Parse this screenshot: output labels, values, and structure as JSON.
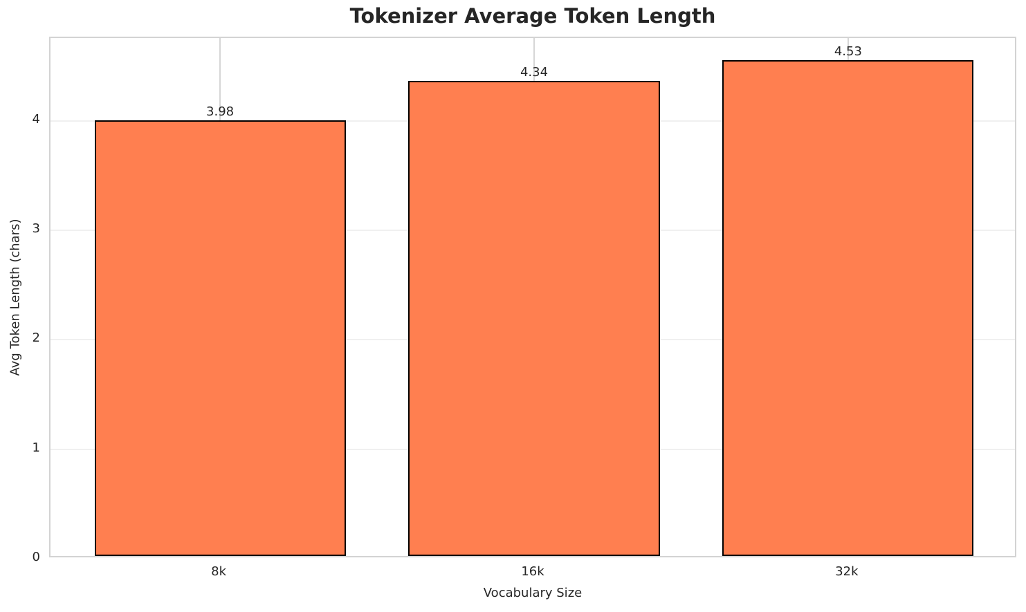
{
  "chart_data": {
    "type": "bar",
    "title": "Tokenizer Average Token Length",
    "xlabel": "Vocabulary Size",
    "ylabel": "Avg Token Length (chars)",
    "categories": [
      "8k",
      "16k",
      "32k"
    ],
    "values": [
      3.98,
      4.34,
      4.53
    ],
    "value_labels": [
      "3.98",
      "4.34",
      "4.53"
    ],
    "yticks": [
      "0",
      "1",
      "2",
      "3",
      "4"
    ],
    "ytick_values": [
      0,
      1,
      2,
      3,
      4
    ],
    "ylim": [
      0,
      4.7565
    ],
    "bar_color": "#FF7F50",
    "bar_edge_color": "#000000",
    "grid": true,
    "legend": false
  }
}
